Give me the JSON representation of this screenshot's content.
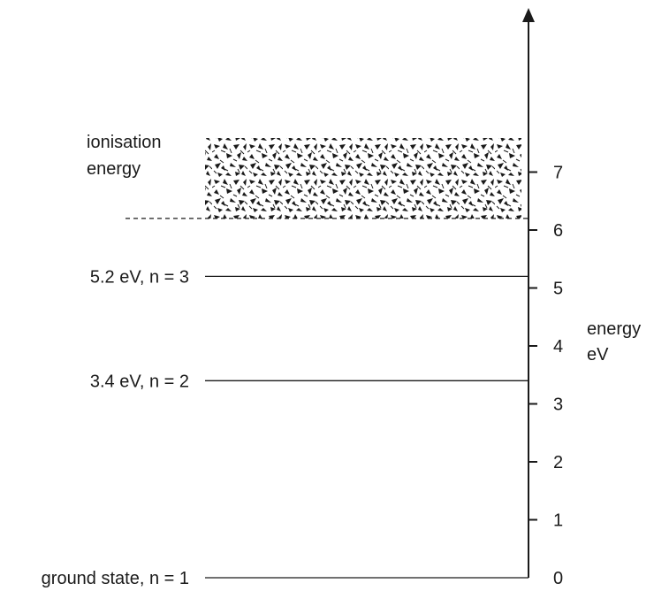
{
  "axis": {
    "label_line1": "energy",
    "label_line2": "eV",
    "ticks": [
      "0",
      "1",
      "2",
      "3",
      "4",
      "5",
      "6",
      "7"
    ],
    "min": 0,
    "max": 7
  },
  "ionisation": {
    "label_line1": "ionisation",
    "label_line2": "energy",
    "level_ev": 6.2
  },
  "levels": [
    {
      "label": "ground state, n = 1",
      "energy_ev": 0
    },
    {
      "label": "3.4 eV, n = 2",
      "energy_ev": 3.4
    },
    {
      "label": "5.2 eV, n = 3",
      "energy_ev": 5.2
    }
  ],
  "colors": {
    "ink": "#1a1a1a",
    "stipple": "#1a1a1a"
  }
}
